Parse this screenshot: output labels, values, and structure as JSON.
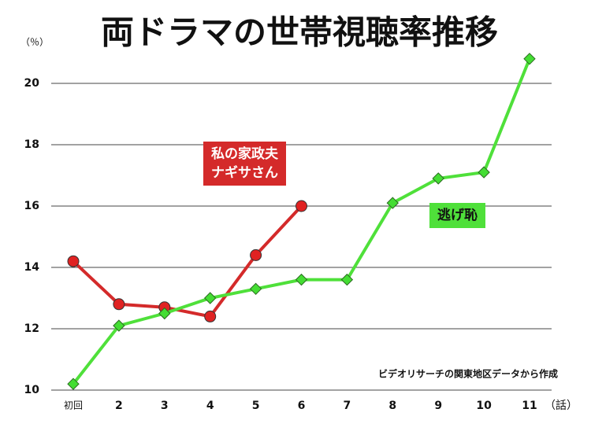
{
  "chart_data": {
    "type": "line",
    "title": "両ドラマの世帯視聴率推移",
    "y_unit": "（％）",
    "x_unit": "（話）",
    "annotation": "ビデオリサーチの関東地区データから作成",
    "categories": [
      "初回",
      "2",
      "3",
      "4",
      "5",
      "6",
      "7",
      "8",
      "9",
      "10",
      "11"
    ],
    "series": [
      {
        "name": "私の家政夫\nナギサさん",
        "color": "#d42a2a",
        "values": [
          14.2,
          12.8,
          12.7,
          12.4,
          14.4,
          16.0,
          null,
          null,
          null,
          null,
          null
        ]
      },
      {
        "name": "逃げ恥",
        "color": "#4fe03a",
        "values": [
          10.2,
          12.1,
          12.5,
          13.0,
          13.3,
          13.6,
          13.6,
          16.1,
          16.9,
          17.1,
          20.8
        ]
      }
    ],
    "ylim": [
      10,
      21
    ],
    "yticks": [
      10,
      12,
      14,
      16,
      18,
      20
    ],
    "grid": true
  }
}
